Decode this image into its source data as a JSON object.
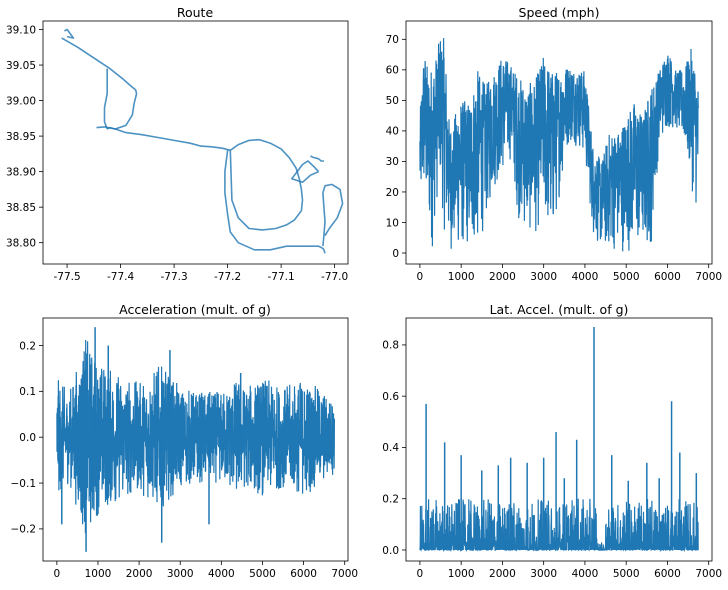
{
  "colors": {
    "line": "#1f77b4",
    "background": "#ffffff",
    "axes": "#000000"
  },
  "chart_data": [
    {
      "type": "line",
      "title": "Route",
      "xlabel": "",
      "ylabel": "",
      "xlim": [
        -77.545,
        -76.975
      ],
      "ylim": [
        38.77,
        39.112
      ],
      "xticks": [
        "-77.5",
        "-77.4",
        "-77.3",
        "-77.2",
        "-77.1",
        "-77.0"
      ],
      "xtick_values": [
        -77.5,
        -77.4,
        -77.3,
        -77.2,
        -77.1,
        -77.0
      ],
      "yticks": [
        "38.80",
        "38.85",
        "38.90",
        "38.95",
        "39.00",
        "39.05",
        "39.10"
      ],
      "ytick_values": [
        38.8,
        38.85,
        38.9,
        38.95,
        39.0,
        39.05,
        39.1
      ],
      "series": [
        {
          "x": [
            -77.505,
            -77.5,
            -77.495,
            -77.488,
            -77.5
          ],
          "y": [
            39.098,
            39.1,
            39.095,
            39.088,
            39.09
          ]
        },
        {
          "x": [
            -77.51,
            -77.48,
            -77.45,
            -77.42,
            -77.395,
            -77.38,
            -77.372,
            -77.37
          ],
          "y": [
            39.088,
            39.075,
            39.06,
            39.045,
            39.03,
            39.02,
            39.015,
            39.01
          ]
        },
        {
          "x": [
            -77.37,
            -77.375,
            -77.378,
            -77.39,
            -77.41,
            -77.42,
            -77.425
          ],
          "y": [
            39.01,
            38.995,
            38.98,
            38.965,
            38.96,
            38.962,
            38.96
          ]
        },
        {
          "x": [
            -77.425,
            -77.43,
            -77.43,
            -77.425,
            -77.425
          ],
          "y": [
            38.96,
            38.97,
            38.99,
            39.01,
            39.045
          ]
        },
        {
          "x": [
            -77.445,
            -77.43,
            -77.41,
            -77.39,
            -77.36,
            -77.33,
            -77.3,
            -77.27,
            -77.25,
            -77.23,
            -77.21,
            -77.195
          ],
          "y": [
            38.962,
            38.963,
            38.96,
            38.955,
            38.952,
            38.948,
            38.944,
            38.94,
            38.936,
            38.935,
            38.933,
            38.93
          ]
        },
        {
          "x": [
            -77.195,
            -77.18,
            -77.16,
            -77.14,
            -77.12,
            -77.1,
            -77.085,
            -77.072,
            -77.066,
            -77.062,
            -77.06,
            -77.062,
            -77.075,
            -77.09,
            -77.11,
            -77.135,
            -77.16,
            -77.18,
            -77.192,
            -77.195
          ],
          "y": [
            38.93,
            38.938,
            38.944,
            38.945,
            38.94,
            38.932,
            38.92,
            38.905,
            38.89,
            38.875,
            38.86,
            38.845,
            38.832,
            38.825,
            38.82,
            38.818,
            38.82,
            38.835,
            38.86,
            38.93
          ]
        },
        {
          "x": [
            -77.2,
            -77.205,
            -77.205,
            -77.2,
            -77.195,
            -77.18,
            -77.15,
            -77.12,
            -77.09,
            -77.06,
            -77.04,
            -77.03,
            -77.022,
            -77.02,
            -77.018
          ],
          "y": [
            38.93,
            38.9,
            38.87,
            38.84,
            38.815,
            38.8,
            38.79,
            38.79,
            38.795,
            38.795,
            38.795,
            38.795,
            38.792,
            38.79,
            38.785
          ]
        },
        {
          "x": [
            -77.022,
            -77.02,
            -77.018,
            -77.02,
            -77.022,
            -77.018,
            -77.005,
            -76.99,
            -76.985,
            -76.995,
            -77.01,
            -77.018
          ],
          "y": [
            38.795,
            38.81,
            38.83,
            38.85,
            38.87,
            38.88,
            38.882,
            38.875,
            38.855,
            38.835,
            38.82,
            38.81
          ]
        },
        {
          "x": [
            -77.03,
            -77.04,
            -77.05,
            -77.06,
            -77.07,
            -77.08,
            -77.06,
            -77.045,
            -77.03
          ],
          "y": [
            38.9,
            38.908,
            38.915,
            38.91,
            38.9,
            38.89,
            38.885,
            38.895,
            38.9
          ]
        },
        {
          "x": [
            -77.02,
            -77.025,
            -77.03,
            -77.04,
            -77.045
          ],
          "y": [
            38.915,
            38.915,
            38.918,
            38.92,
            38.922
          ]
        }
      ]
    },
    {
      "type": "line",
      "title": "Speed (mph)",
      "xlabel": "",
      "ylabel": "",
      "xlim": [
        -337,
        7080
      ],
      "ylim": [
        -3.6,
        76
      ],
      "xticks": [
        "0",
        "1000",
        "2000",
        "3000",
        "4000",
        "5000",
        "6000",
        "7000"
      ],
      "xtick_values": [
        0,
        1000,
        2000,
        3000,
        4000,
        5000,
        6000,
        7000
      ],
      "yticks": [
        "0",
        "10",
        "20",
        "30",
        "40",
        "50",
        "60",
        "70"
      ],
      "ytick_values": [
        0,
        10,
        20,
        30,
        40,
        50,
        60,
        70
      ],
      "n_points": 6750,
      "envelope": {
        "x": [
          0,
          100,
          200,
          300,
          400,
          500,
          600,
          700,
          800,
          900,
          1000,
          1200,
          1400,
          1600,
          1800,
          2000,
          2200,
          2400,
          2600,
          2800,
          3000,
          3200,
          3400,
          3600,
          3800,
          4000,
          4200,
          4400,
          4600,
          4800,
          5000,
          5200,
          5400,
          5600,
          5800,
          6000,
          6200,
          6400,
          6600,
          6750
        ],
        "low": [
          12,
          15,
          5,
          0,
          15,
          20,
          5,
          0,
          0,
          0,
          0,
          0,
          0,
          10,
          20,
          25,
          30,
          10,
          5,
          5,
          10,
          0,
          20,
          35,
          35,
          30,
          5,
          0,
          0,
          0,
          0,
          0,
          0,
          0,
          35,
          40,
          40,
          35,
          20,
          10
        ],
        "high": [
          45,
          68,
          60,
          62,
          65,
          72,
          70,
          45,
          40,
          50,
          50,
          50,
          60,
          55,
          60,
          65,
          62,
          58,
          55,
          57,
          65,
          60,
          60,
          62,
          60,
          60,
          35,
          30,
          40,
          40,
          45,
          50,
          45,
          55,
          60,
          67,
          60,
          60,
          68,
          55
        ]
      }
    },
    {
      "type": "line",
      "title": "Acceleration (mult. of g)",
      "xlabel": "",
      "ylabel": "",
      "xlim": [
        -337,
        7080
      ],
      "ylim": [
        -0.27,
        0.26
      ],
      "xticks": [
        "0",
        "1000",
        "2000",
        "3000",
        "4000",
        "5000",
        "6000",
        "7000"
      ],
      "xtick_values": [
        0,
        1000,
        2000,
        3000,
        4000,
        5000,
        6000,
        7000
      ],
      "yticks": [
        "−0.2",
        "−0.1",
        "0.0",
        "0.1",
        "0.2"
      ],
      "ytick_values": [
        -0.2,
        -0.1,
        0.0,
        0.1,
        0.2
      ],
      "n_points": 6750,
      "amplitude": {
        "x": [
          0,
          300,
          700,
          1000,
          1500,
          2000,
          2500,
          3000,
          3500,
          4000,
          4400,
          4600,
          5000,
          5500,
          6000,
          6500,
          6750
        ],
        "value": [
          0.13,
          0.1,
          0.22,
          0.17,
          0.14,
          0.12,
          0.16,
          0.11,
          0.1,
          0.1,
          0.13,
          0.11,
          0.13,
          0.11,
          0.13,
          0.1,
          0.08
        ]
      },
      "spikes": [
        [
          710,
          -0.25
        ],
        [
          930,
          0.24
        ],
        [
          2550,
          -0.23
        ],
        [
          1250,
          0.2
        ],
        [
          2750,
          0.19
        ],
        [
          120,
          -0.19
        ],
        [
          3700,
          -0.19
        ],
        [
          4470,
          0.14
        ]
      ]
    },
    {
      "type": "line",
      "title": "Lat. Accel. (mult. of g)",
      "xlabel": "",
      "ylabel": "",
      "xlim": [
        -337,
        7080
      ],
      "ylim": [
        -0.043,
        0.905
      ],
      "xticks": [
        "0",
        "1000",
        "2000",
        "3000",
        "4000",
        "5000",
        "6000",
        "7000"
      ],
      "xtick_values": [
        0,
        1000,
        2000,
        3000,
        4000,
        5000,
        6000,
        7000
      ],
      "yticks": [
        "0.0",
        "0.2",
        "0.4",
        "0.6",
        "0.8"
      ],
      "ytick_values": [
        0.0,
        0.2,
        0.4,
        0.6,
        0.8
      ],
      "n_points": 6750,
      "spikes": [
        [
          150,
          0.57
        ],
        [
          600,
          0.42
        ],
        [
          1000,
          0.37
        ],
        [
          1500,
          0.31
        ],
        [
          1900,
          0.33
        ],
        [
          2200,
          0.36
        ],
        [
          2600,
          0.34
        ],
        [
          3000,
          0.36
        ],
        [
          3300,
          0.46
        ],
        [
          3500,
          0.28
        ],
        [
          3800,
          0.43
        ],
        [
          4220,
          0.87
        ],
        [
          4650,
          0.37
        ],
        [
          5050,
          0.27
        ],
        [
          5500,
          0.34
        ],
        [
          5800,
          0.28
        ],
        [
          6100,
          0.58
        ],
        [
          6300,
          0.38
        ],
        [
          6700,
          0.3
        ]
      ]
    }
  ]
}
